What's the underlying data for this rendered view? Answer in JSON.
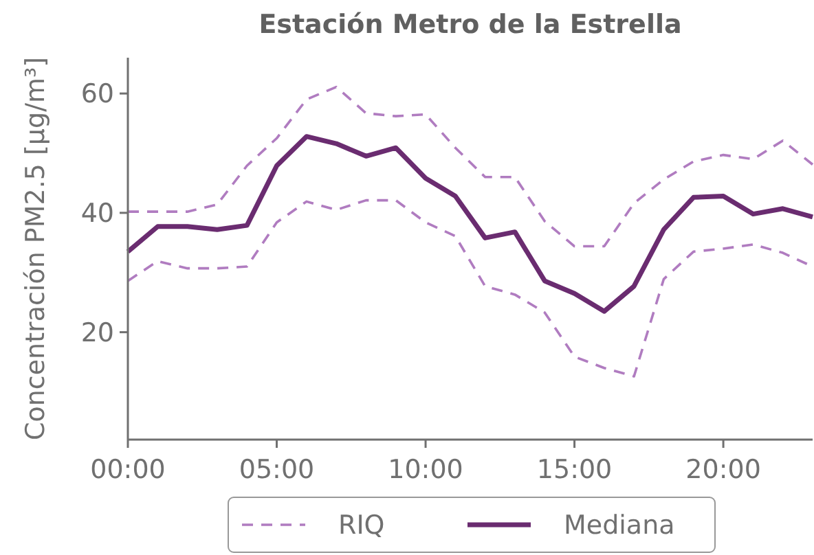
{
  "chart_data": {
    "type": "line",
    "title": "Estación Metro de la Estrella",
    "ylabel": "Concentración PM2.5 [μg/m³]",
    "x": [
      0,
      1,
      2,
      3,
      4,
      5,
      6,
      7,
      8,
      9,
      10,
      11,
      12,
      13,
      14,
      15,
      16,
      17,
      18,
      19,
      20,
      21,
      22,
      23
    ],
    "xlim": [
      0,
      23
    ],
    "xticks": [
      {
        "value": 0,
        "label": "00:00"
      },
      {
        "value": 5,
        "label": "05:00"
      },
      {
        "value": 10,
        "label": "10:00"
      },
      {
        "value": 15,
        "label": "15:00"
      },
      {
        "value": 20,
        "label": "20:00"
      }
    ],
    "ylim": [
      2,
      66
    ],
    "yticks": [
      20,
      40,
      60
    ],
    "grid": false,
    "legend": "bottom",
    "series": [
      {
        "name": "RIQ",
        "color": "#b07cc0",
        "line_style": "dashed",
        "values": [
          40.2,
          40.2,
          40.2,
          41.4,
          47.9,
          52.5,
          59.0,
          61.1,
          56.7,
          56.2,
          56.5,
          50.9,
          46.0,
          46.0,
          38.6,
          34.4,
          34.4,
          41.6,
          45.6,
          48.6,
          49.7,
          49.0,
          52.1,
          48.1
        ]
      },
      {
        "color": "#b07cc0",
        "line_style": "dashed",
        "values": [
          28.6,
          31.9,
          30.7,
          30.7,
          31.0,
          38.4,
          41.9,
          40.5,
          42.1,
          42.1,
          38.4,
          36.1,
          27.7,
          26.3,
          23.3,
          15.9,
          14.0,
          12.6,
          28.9,
          33.5,
          34.0,
          34.7,
          33.3,
          31.0
        ]
      },
      {
        "name": "Mediana",
        "color": "#6a2c70",
        "line_style": "solid",
        "values": [
          33.5,
          37.7,
          37.7,
          37.2,
          37.9,
          47.9,
          52.8,
          51.6,
          49.5,
          50.9,
          45.8,
          42.8,
          35.8,
          36.8,
          28.6,
          26.5,
          23.5,
          27.7,
          37.2,
          42.6,
          42.8,
          39.8,
          40.7,
          39.3
        ]
      }
    ]
  }
}
